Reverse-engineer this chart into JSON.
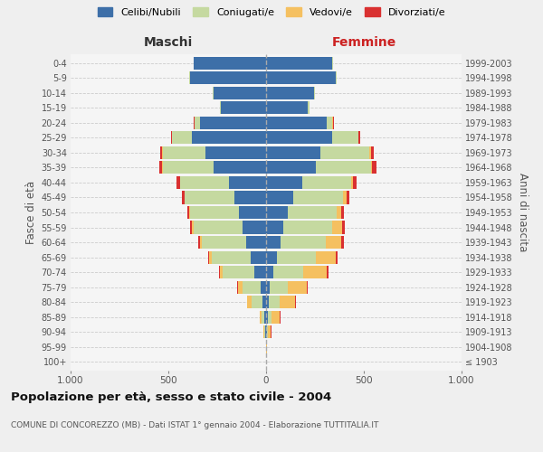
{
  "age_groups": [
    "100+",
    "95-99",
    "90-94",
    "85-89",
    "80-84",
    "75-79",
    "70-74",
    "65-69",
    "60-64",
    "55-59",
    "50-54",
    "45-49",
    "40-44",
    "35-39",
    "30-34",
    "25-29",
    "20-24",
    "15-19",
    "10-14",
    "5-9",
    "0-4"
  ],
  "birth_years": [
    "≤ 1903",
    "1904-1908",
    "1909-1913",
    "1914-1918",
    "1919-1923",
    "1924-1928",
    "1929-1933",
    "1934-1938",
    "1939-1943",
    "1944-1948",
    "1949-1953",
    "1954-1958",
    "1959-1963",
    "1964-1968",
    "1969-1973",
    "1974-1978",
    "1979-1983",
    "1984-1988",
    "1989-1993",
    "1994-1998",
    "1999-2003"
  ],
  "maschi": {
    "celibi": [
      2,
      2,
      5,
      8,
      20,
      30,
      60,
      80,
      100,
      120,
      140,
      160,
      190,
      270,
      310,
      380,
      340,
      230,
      270,
      390,
      370
    ],
    "coniugati": [
      0,
      0,
      5,
      15,
      55,
      90,
      160,
      200,
      230,
      250,
      250,
      255,
      250,
      260,
      220,
      100,
      25,
      5,
      5,
      5,
      2
    ],
    "vedovi": [
      0,
      0,
      3,
      8,
      20,
      25,
      15,
      12,
      10,
      8,
      5,
      3,
      2,
      2,
      2,
      2,
      2,
      0,
      0,
      0,
      0
    ],
    "divorziati": [
      0,
      0,
      0,
      2,
      3,
      3,
      5,
      5,
      8,
      10,
      10,
      12,
      15,
      15,
      10,
      5,
      3,
      2,
      0,
      0,
      0
    ]
  },
  "femmine": {
    "nubili": [
      2,
      2,
      5,
      8,
      15,
      20,
      35,
      55,
      75,
      90,
      110,
      140,
      185,
      255,
      280,
      340,
      310,
      215,
      245,
      355,
      340
    ],
    "coniugate": [
      0,
      0,
      5,
      20,
      55,
      90,
      155,
      200,
      230,
      250,
      250,
      255,
      250,
      280,
      250,
      130,
      30,
      5,
      5,
      5,
      2
    ],
    "vedove": [
      0,
      2,
      15,
      40,
      80,
      100,
      120,
      100,
      80,
      50,
      25,
      15,
      10,
      8,
      5,
      2,
      2,
      2,
      0,
      0,
      0
    ],
    "divorziate": [
      0,
      0,
      2,
      5,
      5,
      5,
      8,
      10,
      12,
      15,
      15,
      15,
      18,
      20,
      15,
      8,
      3,
      2,
      0,
      0,
      0
    ]
  },
  "colors": {
    "celibi_nubili": "#3d6fa8",
    "coniugati": "#c5d9a0",
    "vedovi": "#f5c060",
    "divorziati": "#d93030"
  },
  "xlim": 1000,
  "title": "Popolazione per età, sesso e stato civile - 2004",
  "subtitle": "COMUNE DI CONCOREZZO (MB) - Dati ISTAT 1° gennaio 2004 - Elaborazione TUTTITALIA.IT",
  "xlabel_left": "Maschi",
  "xlabel_right": "Femmine",
  "ylabel_left": "Fasce di età",
  "ylabel_right": "Anni di nascita",
  "legend_labels": [
    "Celibi/Nubili",
    "Coniugati/e",
    "Vedovi/e",
    "Divorziati/e"
  ],
  "bg_color": "#efefef",
  "plot_bg": "#f5f5f5"
}
